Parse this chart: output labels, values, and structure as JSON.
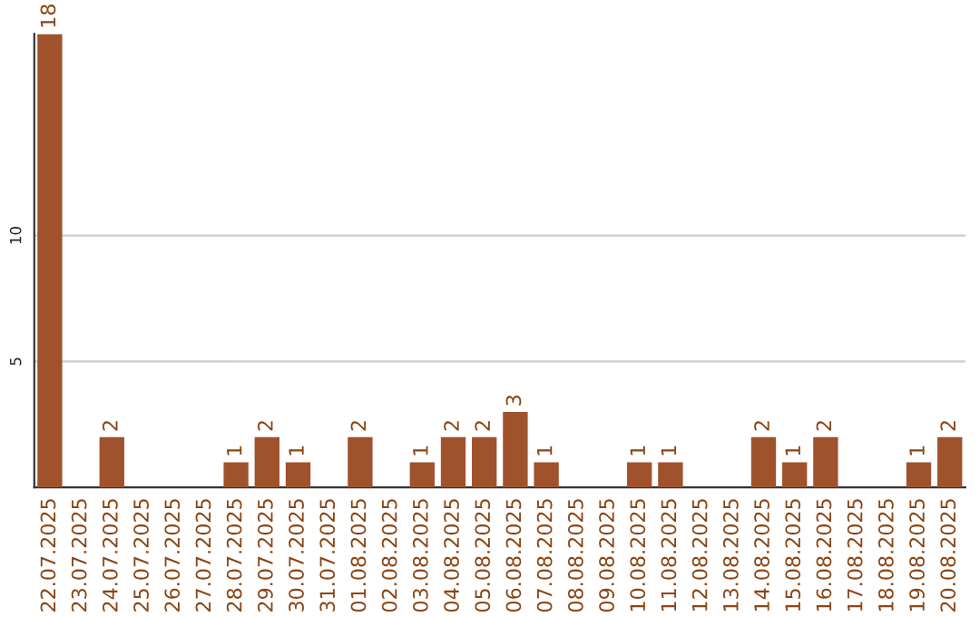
{
  "chart_data": {
    "type": "bar",
    "categories": [
      "22.07.2025",
      "23.07.2025",
      "24.07.2025",
      "25.07.2025",
      "26.07.2025",
      "27.07.2025",
      "28.07.2025",
      "29.07.2025",
      "30.07.2025",
      "31.07.2025",
      "01.08.2025",
      "02.08.2025",
      "03.08.2025",
      "04.08.2025",
      "05.08.2025",
      "06.08.2025",
      "07.08.2025",
      "08.08.2025",
      "09.08.2025",
      "10.08.2025",
      "11.08.2025",
      "12.08.2025",
      "13.08.2025",
      "14.08.2025",
      "15.08.2025",
      "16.08.2025",
      "17.08.2025",
      "18.08.2025",
      "19.08.2025",
      "20.08.2025"
    ],
    "values": [
      18,
      0,
      2,
      0,
      0,
      0,
      1,
      2,
      1,
      0,
      2,
      0,
      1,
      2,
      2,
      3,
      1,
      0,
      0,
      1,
      1,
      0,
      0,
      2,
      1,
      2,
      0,
      0,
      1,
      2
    ],
    "value_labels": [
      "18",
      null,
      "2",
      null,
      null,
      null,
      "1",
      "2",
      "1",
      null,
      "2",
      null,
      "1",
      "2",
      "2",
      "3",
      "1",
      null,
      null,
      "1",
      "1",
      null,
      null,
      "2",
      "1",
      "2",
      null,
      null,
      "1",
      "2"
    ],
    "color": "#a0522d",
    "ylim": [
      0,
      18
    ],
    "yticks": [
      5,
      10
    ],
    "grid": "y"
  }
}
